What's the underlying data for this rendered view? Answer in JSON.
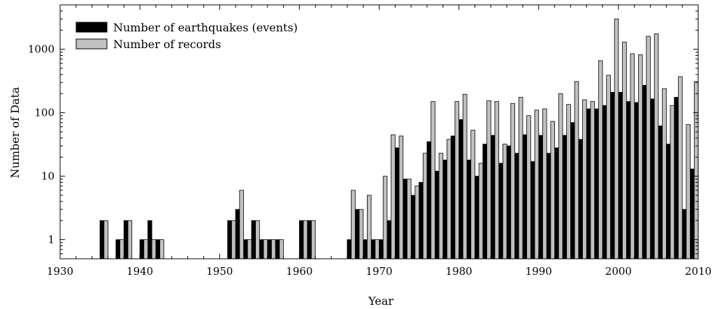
{
  "chart_data": {
    "type": "bar",
    "xlabel": "Year",
    "ylabel": "Number of Data",
    "y_scale": "log",
    "ylim": [
      0.5,
      5000
    ],
    "xlim": [
      1930,
      2010
    ],
    "x_ticks": [
      "1930",
      "1940",
      "1950",
      "1960",
      "1970",
      "1980",
      "1990",
      "2000",
      "2010"
    ],
    "y_ticks": [
      "1",
      "10",
      "100",
      "1000"
    ],
    "legend_position": "top-left",
    "x": [
      1935,
      1937,
      1938,
      1940,
      1941,
      1942,
      1951,
      1952,
      1953,
      1954,
      1955,
      1956,
      1957,
      1960,
      1961,
      1966,
      1967,
      1968,
      1969,
      1970,
      1971,
      1972,
      1973,
      1974,
      1975,
      1976,
      1977,
      1978,
      1979,
      1980,
      1981,
      1982,
      1983,
      1984,
      1985,
      1986,
      1987,
      1988,
      1989,
      1990,
      1991,
      1992,
      1993,
      1994,
      1995,
      1996,
      1997,
      1998,
      1999,
      2000,
      2001,
      2002,
      2003,
      2004,
      2005,
      2006,
      2007,
      2008,
      2009
    ],
    "series": [
      {
        "name": "Number of earthquakes (events)",
        "color": "#000000",
        "values": [
          2,
          1,
          2,
          1,
          2,
          1,
          2,
          3,
          1,
          2,
          1,
          1,
          1,
          2,
          2,
          1,
          3,
          1,
          1,
          1,
          2,
          28,
          9,
          5,
          8,
          35,
          12,
          18,
          43,
          78,
          18,
          10,
          32,
          44,
          16,
          30,
          23,
          45,
          17,
          44,
          23,
          28,
          44,
          70,
          38,
          115,
          115,
          130,
          210,
          210,
          150,
          145,
          270,
          165,
          62,
          32,
          175,
          3,
          13
        ]
      },
      {
        "name": "Number of records",
        "color": "#c0c0c0",
        "values": [
          2,
          1,
          2,
          1,
          1,
          1,
          2,
          6,
          1,
          2,
          1,
          1,
          1,
          2,
          2,
          6,
          3,
          5,
          1,
          10,
          45,
          43,
          9,
          7,
          23,
          150,
          23,
          38,
          150,
          195,
          53,
          16,
          155,
          150,
          32,
          140,
          175,
          90,
          110,
          115,
          73,
          200,
          135,
          310,
          160,
          150,
          660,
          390,
          3000,
          1300,
          850,
          820,
          1600,
          1750,
          240,
          130,
          370,
          65,
          310
        ]
      }
    ]
  }
}
